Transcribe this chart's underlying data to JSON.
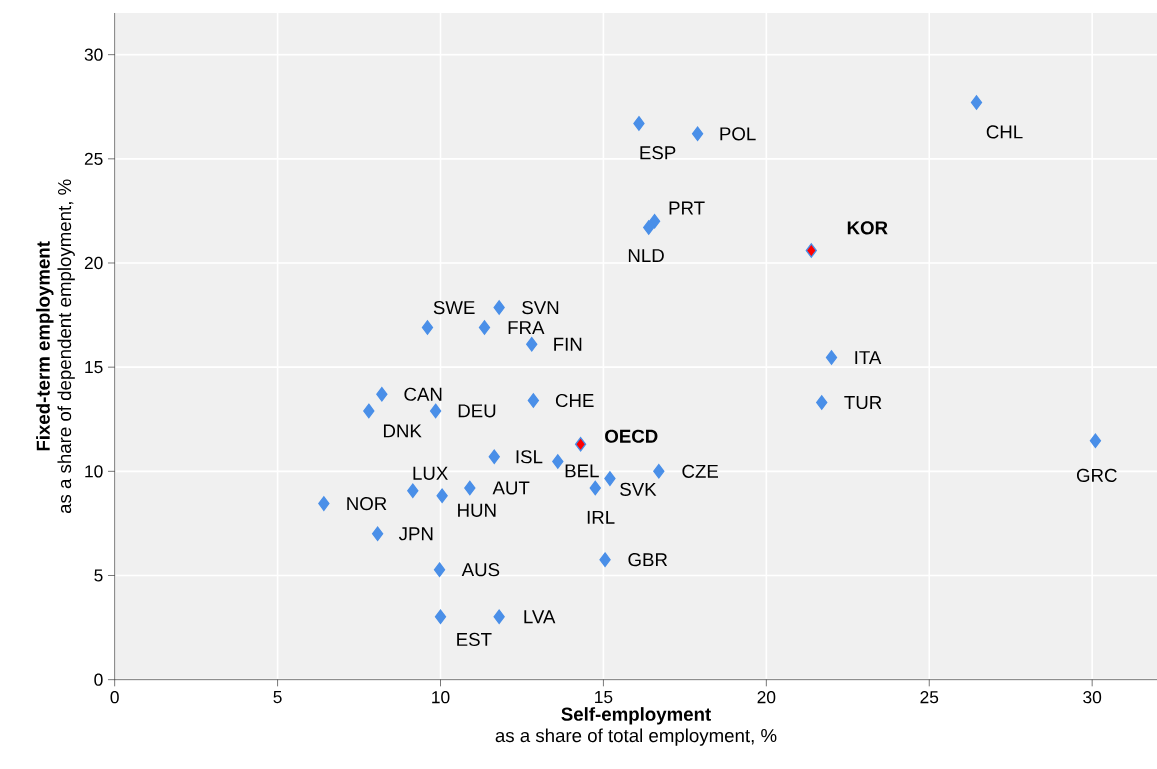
{
  "chart_data": {
    "type": "scatter",
    "xlabel": "**Self-employment**\nas a share of total employment, %",
    "ylabel": "**Fixed-term employment**\nas a share of dependent employment, %",
    "xlim": [
      0,
      32
    ],
    "ylim": [
      0,
      32
    ],
    "xticks": [
      0,
      5,
      10,
      15,
      20,
      25,
      30
    ],
    "yticks": [
      0,
      5,
      10,
      15,
      20,
      25,
      30
    ],
    "grid": true,
    "marker": "diamond",
    "series": [
      {
        "color": "#4a8fe8",
        "x": [
          26.45,
          16.09,
          17.89,
          16.57,
          16.39,
          9.6,
          11.8,
          11.35,
          12.8,
          22.0,
          21.7,
          8.2,
          7.8,
          9.85,
          12.85,
          11.65,
          13.6,
          16.7,
          15.2,
          14.75,
          9.15,
          10.9,
          10.05,
          6.42,
          8.07,
          15.05,
          9.97,
          10.0,
          11.8,
          30.1
        ],
        "values": [
          27.7,
          26.7,
          26.2,
          22.0,
          21.7,
          16.9,
          17.86,
          16.9,
          16.1,
          15.46,
          13.3,
          13.7,
          12.9,
          12.9,
          13.4,
          10.7,
          10.47,
          10.0,
          9.65,
          9.2,
          9.07,
          9.2,
          8.83,
          8.45,
          7.0,
          5.76,
          5.28,
          3.02,
          3.02,
          11.47
        ]
      },
      {
        "color": "#ff0000",
        "x": [
          21.38,
          14.3
        ],
        "values": [
          20.6,
          11.3
        ]
      }
    ],
    "annotations": [
      {
        "text": "CHL",
        "x": 26.45,
        "y": 27.7
      },
      {
        "text": "ESP",
        "x": 16.09,
        "y": 26.7
      },
      {
        "text": "POL",
        "x": 17.89,
        "y": 26.2
      },
      {
        "text": "PRT",
        "x": 16.57,
        "y": 22.0
      },
      {
        "text": "NLD",
        "x": 16.39,
        "y": 21.7
      },
      {
        "text": "KOR",
        "x": 21.38,
        "y": 20.6
      },
      {
        "text": "SWE",
        "x": 9.6,
        "y": 16.9
      },
      {
        "text": "SVN",
        "x": 11.8,
        "y": 17.86
      },
      {
        "text": "FRA",
        "x": 11.35,
        "y": 16.9
      },
      {
        "text": "FIN",
        "x": 12.8,
        "y": 16.1
      },
      {
        "text": "ITA",
        "x": 22.0,
        "y": 15.46
      },
      {
        "text": "TUR",
        "x": 21.7,
        "y": 13.3
      },
      {
        "text": "CAN",
        "x": 8.2,
        "y": 13.7
      },
      {
        "text": "DNK",
        "x": 7.8,
        "y": 12.9
      },
      {
        "text": "DEU",
        "x": 9.85,
        "y": 12.9
      },
      {
        "text": "CHE",
        "x": 12.85,
        "y": 13.4
      },
      {
        "text": "OECD",
        "x": 14.3,
        "y": 11.3
      },
      {
        "text": "ISL",
        "x": 11.65,
        "y": 10.7
      },
      {
        "text": "BEL",
        "x": 13.6,
        "y": 10.47
      },
      {
        "text": "CZE",
        "x": 16.7,
        "y": 10.0
      },
      {
        "text": "SVK",
        "x": 15.2,
        "y": 9.65
      },
      {
        "text": "IRL",
        "x": 14.75,
        "y": 9.2
      },
      {
        "text": "LUX",
        "x": 9.15,
        "y": 9.07
      },
      {
        "text": "AUT",
        "x": 10.9,
        "y": 9.2
      },
      {
        "text": "HUN",
        "x": 10.05,
        "y": 8.83
      },
      {
        "text": "NOR",
        "x": 6.42,
        "y": 8.45
      },
      {
        "text": "JPN",
        "x": 8.07,
        "y": 7.0
      },
      {
        "text": "GBR",
        "x": 15.05,
        "y": 5.76
      },
      {
        "text": "AUS",
        "x": 9.97,
        "y": 5.28
      },
      {
        "text": "EST",
        "x": 10.0,
        "y": 3.02
      },
      {
        "text": "LVA",
        "x": 11.8,
        "y": 3.02
      },
      {
        "text": "GRC",
        "x": 30.1,
        "y": 11.47
      }
    ]
  }
}
